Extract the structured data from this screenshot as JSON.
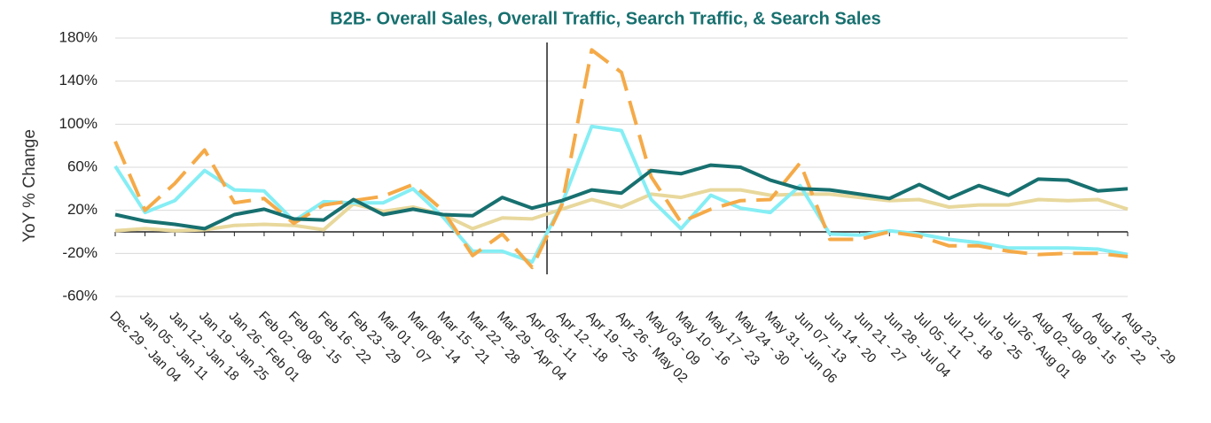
{
  "chart_data": {
    "type": "line",
    "title": "B2B- Overall Sales, Overall Traffic, Search Traffic, & Search Sales",
    "y_label": "YoY % Change",
    "categories": [
      "Dec 29 - Jan 04",
      "Jan 05 - Jan 11",
      "Jan 12 - Jan 18",
      "Jan 19 - Jan 25",
      "Jan 26 - Feb 01",
      "Feb 02 - 08",
      "Feb 09 - 15",
      "Feb 16 - 22",
      "Feb 23 - 29",
      "Mar 01 - 07",
      "Mar 08 - 14",
      "Mar 15 - 21",
      "Mar 22 - 28",
      "Mar 29 - Apr 04",
      "Apr 05 - 11",
      "Apr 12 - 18",
      "Apr 19 - 25",
      "Apr 26 - May 02",
      "May 03 - 09",
      "May 10 - 16",
      "May 17 - 23",
      "May 24 - 30",
      "May 31 - Jun 06",
      "Jun 07 - 13",
      "Jun 14 - 20",
      "Jun 21 - 27",
      "Jun 28 - Jul 04",
      "Jul 05 - 11",
      "Jul 12 - 18",
      "Jul 19 - 25",
      "Jul 26 - Aug 01",
      "Aug 02 - 08",
      "Aug 09 - 15",
      "Aug 16 - 22",
      "Aug 23 - 29"
    ],
    "series": [
      {
        "color": "#e8d89c",
        "dashed": false,
        "values": [
          1,
          3,
          1,
          2,
          6,
          7,
          6,
          2,
          26,
          19,
          23,
          16,
          3,
          13,
          12,
          21,
          30,
          23,
          35,
          32,
          39,
          39,
          34,
          35,
          35,
          32,
          29,
          30,
          23,
          25,
          25,
          30,
          29,
          30,
          21
        ]
      },
      {
        "color": "#85eef4",
        "dashed": false,
        "values": [
          61,
          18,
          29,
          57,
          39,
          38,
          10,
          28,
          27,
          27,
          40,
          14,
          -18,
          -18,
          -28,
          26,
          98,
          94,
          30,
          3,
          34,
          22,
          18,
          43,
          -2,
          -3,
          1,
          -2,
          -7,
          -10,
          -15,
          -15,
          -15,
          -16,
          -21
        ]
      },
      {
        "color": "#f5aa48",
        "dashed": true,
        "values": [
          84,
          20,
          45,
          76,
          27,
          31,
          8,
          25,
          29,
          33,
          44,
          20,
          -22,
          -2,
          -33,
          25,
          169,
          148,
          51,
          9,
          21,
          29,
          30,
          64,
          -7,
          -7,
          0,
          -4,
          -13,
          -13,
          -18,
          -21,
          -20,
          -20,
          -23
        ]
      },
      {
        "color": "#17706f",
        "dashed": false,
        "values": [
          16,
          10,
          7,
          3,
          16,
          21,
          12,
          11,
          30,
          16,
          21,
          16,
          15,
          32,
          22,
          29,
          39,
          36,
          57,
          54,
          62,
          60,
          48,
          40,
          39,
          35,
          31,
          44,
          31,
          43,
          34,
          49,
          48,
          38,
          40
        ]
      }
    ],
    "ylim": [
      -60,
      180
    ],
    "yticks": [
      {
        "value": -60,
        "label": "-60%"
      },
      {
        "value": -20,
        "label": "-20%"
      },
      {
        "value": 20,
        "label": "20%"
      },
      {
        "value": 60,
        "label": "60%"
      },
      {
        "value": 100,
        "label": "100%"
      },
      {
        "value": 140,
        "label": "140%"
      },
      {
        "value": 180,
        "label": "180%"
      }
    ],
    "grid": true
  }
}
